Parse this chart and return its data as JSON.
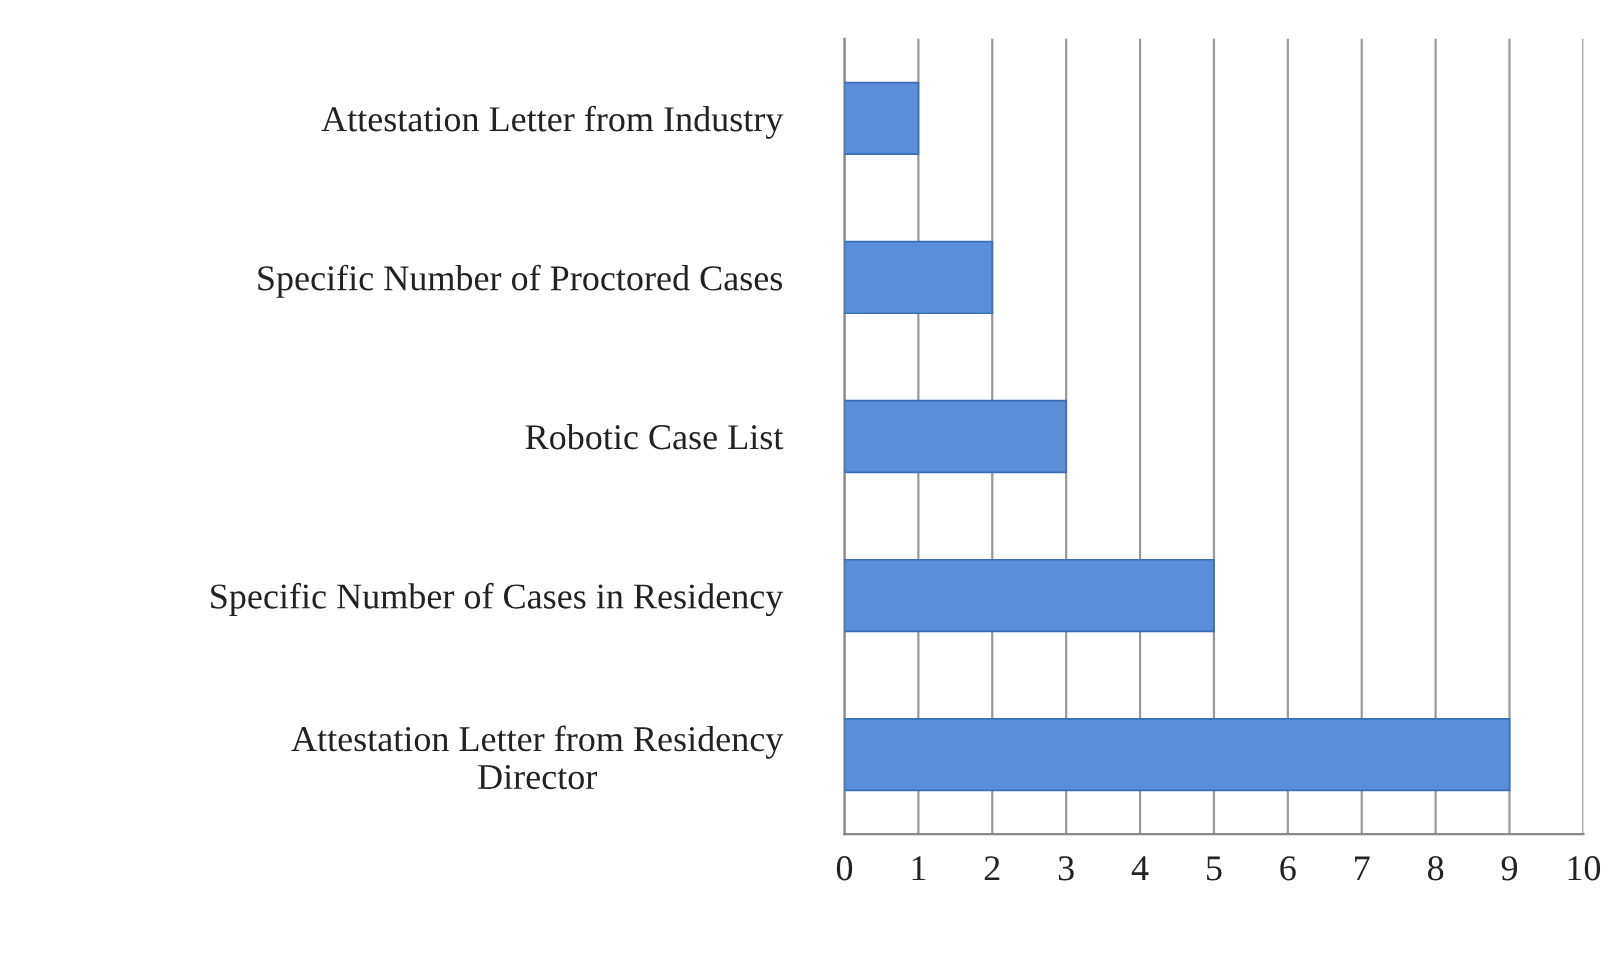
{
  "chart_data": {
    "type": "bar",
    "orientation": "horizontal",
    "categories": [
      "Attestation Letter from Industry",
      "Specific Number of Proctored Cases",
      "Robotic Case List",
      "Specific Number of Cases in Residency",
      "Attestation Letter from Residency\nDirector"
    ],
    "values": [
      1,
      2,
      3,
      5,
      9
    ],
    "color": "#5b8ed8",
    "xlim": [
      0,
      10
    ],
    "xticks": [
      0,
      1,
      2,
      3,
      4,
      5,
      6,
      7,
      8,
      9,
      10
    ],
    "grid": "x"
  }
}
